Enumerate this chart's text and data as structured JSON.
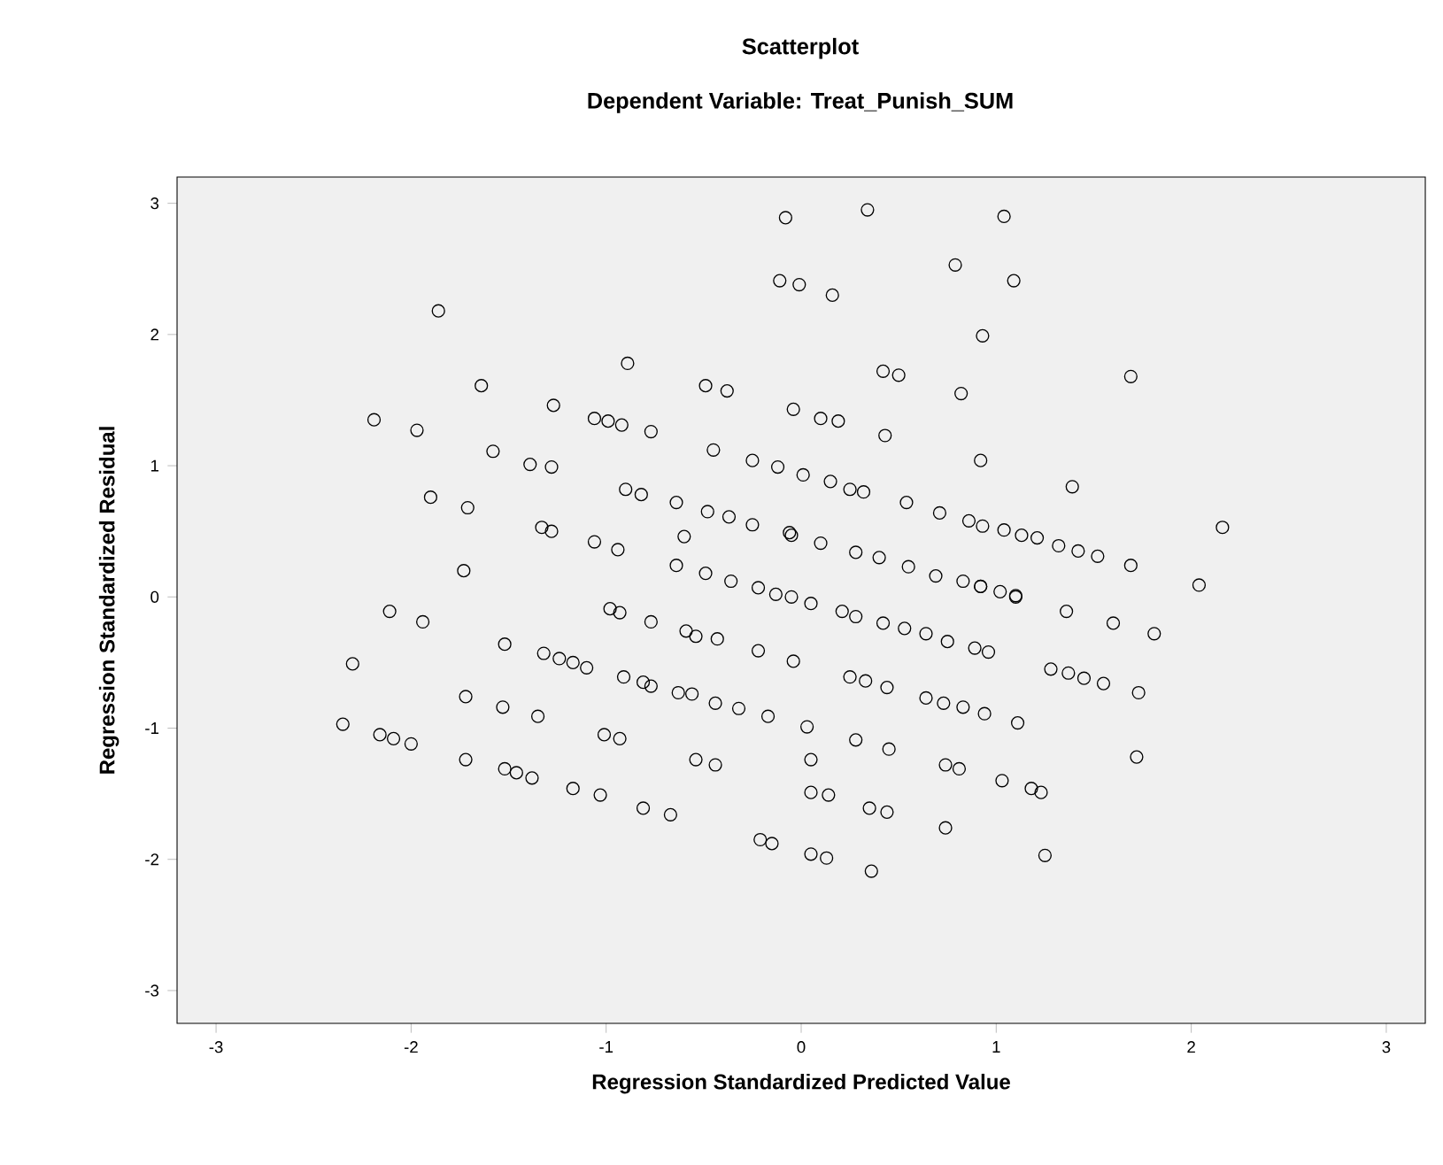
{
  "chart_data": {
    "type": "scatter",
    "title": "Scatterplot",
    "subtitle": "Dependent Variable: Treat_Punish_SUM",
    "xlabel": "Regression Standardized Predicted Value",
    "ylabel": "Regression Standardized Residual",
    "xlim": [
      -3.2,
      3.2
    ],
    "ylim": [
      -3.25,
      3.2
    ],
    "xticks": [
      -3,
      -2,
      -1,
      0,
      1,
      2,
      3
    ],
    "yticks": [
      -3,
      -2,
      -1,
      0,
      1,
      2,
      3
    ],
    "grid": false,
    "marker": "circle",
    "series": [
      {
        "color": "#000000",
        "x": [
          -1.86,
          -1.64,
          -0.89,
          -0.49,
          -0.38,
          -0.08,
          -0.11,
          -0.01,
          -2.19,
          -1.97,
          -1.27,
          -1.06,
          -0.99,
          -0.92,
          -0.77,
          -0.04,
          -1.58,
          -1.39,
          -1.28,
          -0.45,
          -0.25,
          -0.12,
          -1.9,
          -1.71,
          -1.33,
          -1.28,
          -1.06,
          -0.94,
          -0.9,
          -0.82,
          -0.64,
          -0.48,
          -0.37,
          -0.25,
          -0.6,
          -1.73,
          -0.64,
          -0.49,
          -0.36,
          -0.06,
          0.34,
          1.04,
          0.16,
          0.79,
          1.09,
          0.93,
          0.42,
          0.5,
          0.82,
          1.69,
          0.1,
          0.19,
          0.43,
          0.92,
          1.39,
          2.16,
          0.01,
          0.15,
          0.25,
          0.32,
          0.54,
          0.71,
          0.86,
          0.93,
          1.04,
          1.13,
          1.21,
          1.32,
          1.42,
          1.52,
          1.69,
          2.04,
          -0.05,
          0.1,
          0.28,
          0.4,
          0.55,
          0.69,
          0.92,
          1.1,
          -2.11,
          -1.94,
          -2.3,
          -2.35,
          -2.16,
          -2.09,
          -2.0,
          -1.72,
          -1.72,
          -1.52,
          -1.53,
          -1.35,
          -1.52,
          -1.46,
          -1.38,
          -1.32,
          -1.24,
          -1.17,
          -1.1,
          -0.98,
          -0.93,
          -0.77,
          -0.91,
          -0.81,
          -0.77,
          -1.01,
          -0.93,
          -1.17,
          -1.03,
          -0.81,
          -0.67,
          -0.22,
          -0.13,
          -0.05,
          0.05,
          -0.59,
          -0.54,
          -0.43,
          -0.22,
          -0.04,
          -0.63,
          -0.56,
          -0.44,
          -0.32,
          -0.17,
          0.03,
          -0.54,
          -0.44,
          -0.21,
          -0.15,
          0.05,
          0.05,
          0.05,
          0.83,
          0.92,
          1.02,
          1.1,
          0.21,
          0.28,
          0.42,
          0.53,
          0.64,
          0.75,
          0.89,
          0.96,
          1.36,
          1.6,
          1.81,
          0.25,
          0.33,
          0.44,
          0.64,
          0.73,
          0.83,
          0.94,
          1.11,
          1.28,
          1.37,
          1.45,
          1.55,
          1.73,
          1.72,
          0.28,
          0.45,
          0.74,
          0.81,
          1.03,
          1.18,
          1.23,
          0.14,
          0.35,
          0.44,
          0.74,
          0.13,
          0.36,
          1.25
        ],
        "values": [
          2.18,
          1.61,
          1.78,
          1.61,
          1.57,
          2.89,
          2.41,
          2.38,
          1.35,
          1.27,
          1.46,
          1.36,
          1.34,
          1.31,
          1.26,
          1.43,
          1.11,
          1.01,
          0.99,
          1.12,
          1.04,
          0.99,
          0.76,
          0.68,
          0.53,
          0.5,
          0.42,
          0.36,
          0.82,
          0.78,
          0.72,
          0.65,
          0.61,
          0.55,
          0.46,
          0.2,
          0.24,
          0.18,
          0.12,
          0.49,
          2.95,
          2.9,
          2.3,
          2.53,
          2.41,
          1.99,
          1.72,
          1.69,
          1.55,
          1.68,
          1.36,
          1.34,
          1.23,
          1.04,
          0.84,
          0.53,
          0.93,
          0.88,
          0.82,
          0.8,
          0.72,
          0.64,
          0.58,
          0.54,
          0.51,
          0.47,
          0.45,
          0.39,
          0.35,
          0.31,
          0.24,
          0.09,
          0.47,
          0.41,
          0.34,
          0.3,
          0.23,
          0.16,
          0.08,
          0.01,
          -0.11,
          -0.19,
          -0.51,
          -0.97,
          -1.05,
          -1.08,
          -1.12,
          -0.76,
          -1.24,
          -0.36,
          -0.84,
          -0.91,
          -1.31,
          -1.34,
          -1.38,
          -0.43,
          -0.47,
          -0.5,
          -0.54,
          -0.09,
          -0.12,
          -0.19,
          -0.61,
          -0.65,
          -0.68,
          -1.05,
          -1.08,
          -1.46,
          -1.51,
          -1.61,
          -1.66,
          0.07,
          0.02,
          0.0,
          -0.05,
          -0.26,
          -0.3,
          -0.32,
          -0.41,
          -0.49,
          -0.73,
          -0.74,
          -0.81,
          -0.85,
          -0.91,
          -0.99,
          -1.24,
          -1.28,
          -1.85,
          -1.88,
          -1.24,
          -1.49,
          -1.96,
          0.12,
          0.08,
          0.04,
          0.0,
          -0.11,
          -0.15,
          -0.2,
          -0.24,
          -0.28,
          -0.34,
          -0.39,
          -0.42,
          -0.11,
          -0.2,
          -0.28,
          -0.61,
          -0.64,
          -0.69,
          -0.77,
          -0.81,
          -0.84,
          -0.89,
          -0.96,
          -0.55,
          -0.58,
          -0.62,
          -0.66,
          -0.73,
          -1.22,
          -1.09,
          -1.16,
          -1.28,
          -1.31,
          -1.4,
          -1.46,
          -1.49,
          -1.51,
          -1.61,
          -1.64,
          -1.76,
          -1.99,
          -2.09,
          -1.97
        ]
      }
    ]
  }
}
